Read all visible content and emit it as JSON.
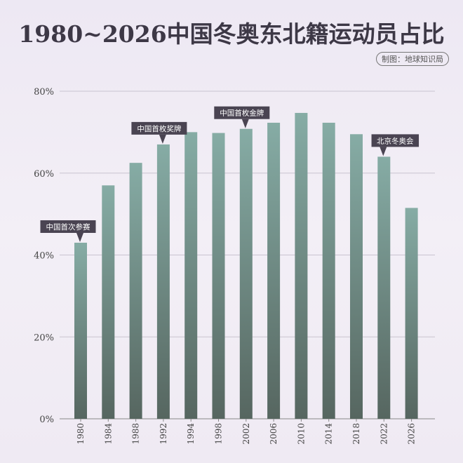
{
  "title": "1980~2026中国冬奥东北籍运动员占比",
  "credit": "制图：地球知识局",
  "chart_data": {
    "type": "bar",
    "title": "1980~2026中国冬奥东北籍运动员占比",
    "xlabel": "",
    "ylabel": "",
    "ylim": [
      0,
      80
    ],
    "yticks": [
      0,
      20,
      40,
      60,
      80
    ],
    "ytick_labels": [
      "0%",
      "20%",
      "40%",
      "60%",
      "80%"
    ],
    "grid": true,
    "categories": [
      "1980",
      "1984",
      "1988",
      "1992",
      "1994",
      "1998",
      "2002",
      "2006",
      "2010",
      "2014",
      "2018",
      "2022",
      "2026"
    ],
    "values": [
      43,
      57,
      62.5,
      67,
      70,
      69.8,
      70.8,
      72.3,
      74.7,
      72.3,
      69.5,
      64,
      51.5
    ],
    "annotations": [
      {
        "category": "1980",
        "text": "中国首次参赛"
      },
      {
        "category": "1992",
        "text": "中国首枚奖牌"
      },
      {
        "category": "2002",
        "text": "中国首枚金牌"
      },
      {
        "category": "2022",
        "text": "北京冬奥会"
      }
    ],
    "colors": {
      "bar_top": "#86aca5",
      "bar_bottom": "#566660",
      "annotation": "#4a4452"
    }
  }
}
